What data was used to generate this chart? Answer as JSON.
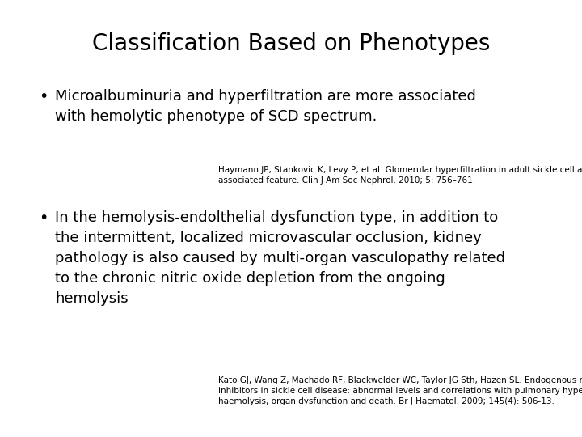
{
  "title": "Classification Based on Phenotypes",
  "background_color": "#ffffff",
  "title_fontsize": 20,
  "title_font": "DejaVu Sans",
  "bullet1_lines": [
    "Microalbuminuria and hyperfiltration are more associated",
    "with hemolytic phenotype of SCD spectrum."
  ],
  "ref1_line1": "Haymann JP, Stankovic K, Levy P, et al. Glomerular hyperfiltration in adult sickle cell anemia: a frequent hemolysis",
  "ref1_line2": "associated feature. Clin J Am Soc Nephrol. 2010; 5: 756–761.",
  "bullet2_lines": [
    "In the hemolysis-endolthelial dysfunction type, in addition to",
    "the intermittent, localized microvascular occlusion, kidney",
    "pathology is also caused by multi-organ vasculopathy related",
    "to the chronic nitric oxide depletion from the ongoing",
    "hemolysis"
  ],
  "ref2_line1": "Kato GJ, Wang Z, Machado RF, Blackwelder WC, Taylor JG 6",
  "ref2_line1b": "th",
  "ref2_line1c": ", Hazen SL. Endogenous nitric oxide synthase",
  "ref2_line2": "inhibitors in sickle cell disease: abnormal levels and correlations with pulmonary hypertension, desaturation,",
  "ref2_line3": "haemolysis, organ dysfunction and death. Br J Haematol. 2009; 145(4): 506-13.",
  "text_color": "#000000",
  "bullet_fontsize": 13,
  "ref_fontsize": 7.5
}
